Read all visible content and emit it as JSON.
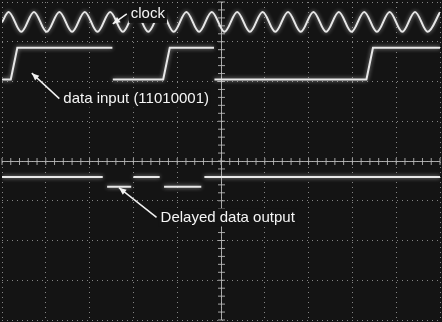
{
  "chart_data": {
    "type": "line",
    "xlim": [
      0,
      10
    ],
    "ylim": [
      0,
      8
    ],
    "xticks": [
      0,
      1,
      2,
      3,
      4,
      5,
      6,
      7,
      8,
      9,
      10
    ],
    "yticks": [
      0,
      1,
      2,
      3,
      4,
      5,
      6,
      7,
      8
    ],
    "grid": true,
    "tick_labels": false,
    "series": [
      {
        "color": "#e8e8e8",
        "line_style": "smooth",
        "x": [
          0,
          0.15,
          0.44,
          0.73,
          1.02,
          1.31,
          1.6,
          1.89,
          2.18,
          2.47,
          2.76,
          3.05,
          3.34,
          3.63,
          3.92,
          4.21,
          4.5,
          4.79,
          5.08,
          5.37,
          5.66,
          5.95,
          6.24,
          6.53,
          6.82,
          7.11,
          7.4,
          7.69,
          7.98,
          8.27,
          8.56,
          8.85,
          9.14,
          9.43,
          9.72,
          10
        ],
        "values": [
          7.49,
          7.75,
          7.25,
          7.75,
          7.25,
          7.75,
          7.25,
          7.75,
          7.25,
          7.75,
          7.25,
          7.75,
          7.25,
          7.75,
          7.25,
          7.75,
          7.25,
          7.75,
          7.25,
          7.75,
          7.25,
          7.75,
          7.25,
          7.75,
          7.25,
          7.75,
          7.25,
          7.75,
          7.25,
          7.75,
          7.25,
          7.75,
          7.25,
          7.75,
          7.25,
          7.74
        ]
      },
      {
        "color": "#e8e8e8",
        "line_style": "solid",
        "x": [
          0,
          0.2,
          0.35,
          2.52,
          2.525,
          2.53,
          3.68,
          3.83,
          4.84,
          4.845,
          4.85,
          8.32,
          8.47,
          10
        ],
        "values": [
          6.05,
          6.05,
          6.85,
          6.85,
          null,
          6.05,
          6.05,
          6.85,
          6.85,
          null,
          6.05,
          6.05,
          6.85,
          6.85
        ]
      },
      {
        "color": "#e8e8e8",
        "line_style": "solid",
        "x": [
          0,
          2.3,
          2.35,
          2.4,
          2.95,
          2.975,
          3.0,
          3.6,
          3.65,
          3.7,
          4.55,
          4.585,
          4.62,
          10
        ],
        "values": [
          3.6,
          3.6,
          null,
          3.35,
          3.35,
          null,
          3.6,
          3.6,
          null,
          3.35,
          3.35,
          null,
          3.6,
          3.6
        ]
      }
    ],
    "annotations": [
      {
        "text": "clock",
        "x": 2.53,
        "y": 7.45,
        "text_x": 2.94,
        "text_y": 7.7
      },
      {
        "text": "data input (11010001)",
        "x": 0.68,
        "y": 6.21,
        "text_x": 1.4,
        "text_y": 5.57
      },
      {
        "text": "Delayed data output",
        "x": 2.67,
        "y": 3.33,
        "text_x": 3.62,
        "text_y": 2.58
      }
    ]
  }
}
